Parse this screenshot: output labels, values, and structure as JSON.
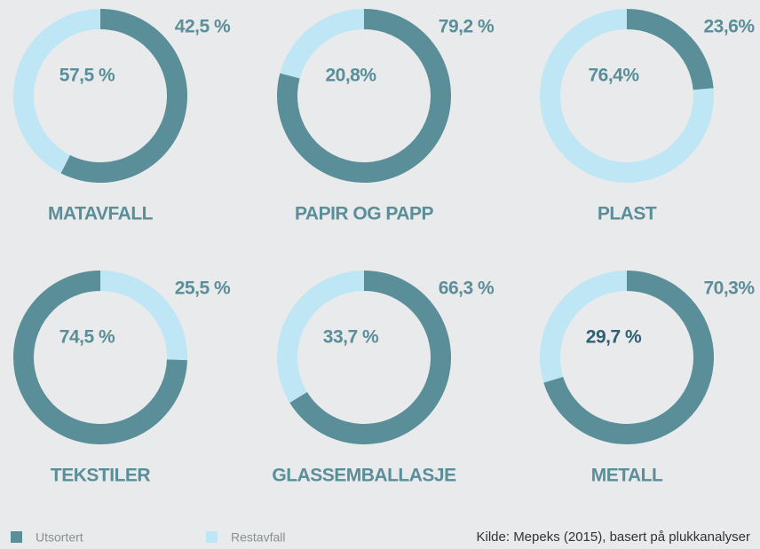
{
  "chart_data": [
    {
      "type": "donut",
      "title": "MATAVFALL",
      "values": [
        57.5,
        42.5
      ],
      "value_labels": [
        "57,5 %",
        "42,5 %"
      ]
    },
    {
      "type": "donut",
      "title": "PAPIR OG PAPP",
      "values": [
        79.2,
        20.8
      ],
      "value_labels": [
        "79,2 %",
        "20,8%"
      ]
    },
    {
      "type": "donut",
      "title": "PLAST",
      "values": [
        23.6,
        76.4
      ],
      "value_labels": [
        "23,6%",
        "76,4%"
      ]
    },
    {
      "type": "donut",
      "title": "TEKSTILER",
      "values": [
        74.5,
        25.5
      ],
      "value_labels": [
        "74,5 %",
        "25,5 %"
      ]
    },
    {
      "type": "donut",
      "title": "GLASSEMBALLASJE",
      "values": [
        66.3,
        33.7
      ],
      "value_labels": [
        "66,3 %",
        "33,7 %"
      ]
    },
    {
      "type": "donut",
      "title": "METALL",
      "values": [
        70.3,
        29.7
      ],
      "value_labels": [
        "70,3%",
        "29,7 %"
      ]
    }
  ],
  "legend": [
    {
      "name": "Utsortert",
      "color": "#5a8e98"
    },
    {
      "name": "Restavfall",
      "color": "#bfe6f4"
    }
  ],
  "source": "Kilde: Mepeks (2015), basert på plukkanalyser"
}
